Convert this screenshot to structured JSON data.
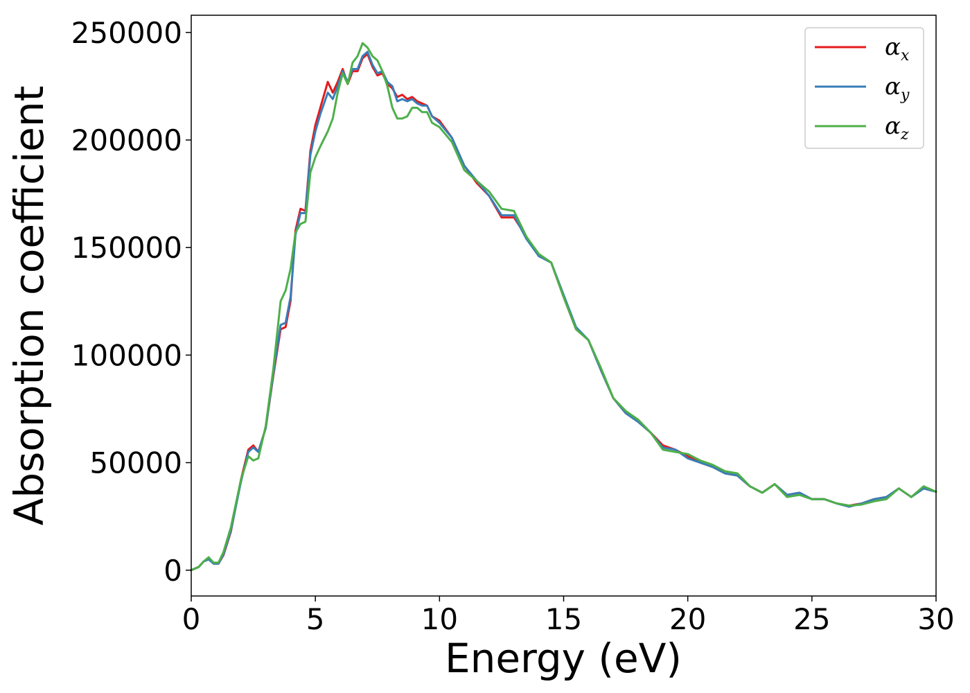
{
  "chart_data": {
    "type": "line",
    "xlabel": "Energy (eV)",
    "ylabel": "Absorption coefficient",
    "xlim": [
      0,
      30
    ],
    "ylim": [
      -12000,
      258000
    ],
    "xticks": [
      0,
      5,
      10,
      15,
      20,
      25,
      30
    ],
    "xtick_labels": [
      "0",
      "5",
      "10",
      "15",
      "20",
      "25",
      "30"
    ],
    "yticks": [
      0,
      50000,
      100000,
      150000,
      200000,
      250000
    ],
    "ytick_labels": [
      "0",
      "50000",
      "100000",
      "150000",
      "200000",
      "250000"
    ],
    "grid": false,
    "legend_position": "top-right",
    "series": [
      {
        "name": "α",
        "subscript": "x",
        "color": "#e41a1c",
        "x": [
          0,
          0.3,
          0.5,
          0.7,
          0.9,
          1.1,
          1.3,
          1.6,
          2.0,
          2.3,
          2.5,
          2.7,
          3.0,
          3.3,
          3.6,
          3.8,
          4.0,
          4.2,
          4.4,
          4.6,
          4.8,
          5.0,
          5.2,
          5.5,
          5.7,
          5.9,
          6.1,
          6.3,
          6.5,
          6.7,
          6.9,
          7.1,
          7.3,
          7.5,
          7.7,
          7.9,
          8.1,
          8.3,
          8.5,
          8.7,
          8.9,
          9.1,
          9.3,
          9.5,
          9.7,
          10.0,
          10.5,
          11.0,
          11.5,
          12.0,
          12.5,
          13.0,
          13.5,
          14.0,
          14.5,
          15.0,
          15.5,
          16.0,
          16.5,
          17.0,
          17.5,
          18.0,
          18.5,
          19.0,
          19.5,
          20.0,
          20.5,
          21.0,
          21.5,
          22.0,
          22.5,
          23.0,
          23.5,
          24.0,
          24.5,
          25.0,
          25.5,
          26.0,
          26.5,
          27.0,
          27.5,
          28.0,
          28.5,
          29.0,
          29.5,
          30.0
        ],
        "y": [
          0,
          1500,
          4000,
          5500,
          3000,
          3000,
          7000,
          18000,
          42000,
          56000,
          58000,
          55000,
          66000,
          90000,
          112000,
          113000,
          125000,
          158000,
          168000,
          167000,
          195000,
          207000,
          215000,
          227000,
          222000,
          227000,
          233000,
          226000,
          232000,
          232000,
          238000,
          240000,
          234000,
          230000,
          231000,
          226000,
          224000,
          220000,
          221000,
          219000,
          220000,
          218000,
          217000,
          216000,
          211000,
          209000,
          201000,
          188000,
          180000,
          174000,
          164000,
          164000,
          155000,
          146000,
          143000,
          127000,
          112000,
          107000,
          93000,
          80000,
          73000,
          69000,
          64000,
          58000,
          56000,
          53000,
          50000,
          48000,
          45000,
          44000,
          39000,
          36000,
          40000,
          35000,
          36000,
          33000,
          33000,
          31000,
          30000,
          31000,
          33000,
          34000,
          38000,
          34000,
          38000,
          36500
        ]
      },
      {
        "name": "α",
        "subscript": "y",
        "color": "#377eb8",
        "x": [
          0,
          0.3,
          0.5,
          0.7,
          0.9,
          1.1,
          1.3,
          1.6,
          2.0,
          2.3,
          2.5,
          2.7,
          3.0,
          3.3,
          3.6,
          3.8,
          4.0,
          4.2,
          4.4,
          4.6,
          4.8,
          5.0,
          5.2,
          5.5,
          5.7,
          5.9,
          6.1,
          6.3,
          6.5,
          6.7,
          6.9,
          7.1,
          7.3,
          7.5,
          7.7,
          7.9,
          8.1,
          8.3,
          8.5,
          8.7,
          8.9,
          9.1,
          9.3,
          9.5,
          9.7,
          10.0,
          10.5,
          11.0,
          11.5,
          12.0,
          12.5,
          13.0,
          13.5,
          14.0,
          14.5,
          15.0,
          15.5,
          16.0,
          16.5,
          17.0,
          17.5,
          18.0,
          18.5,
          19.0,
          19.5,
          20.0,
          20.5,
          21.0,
          21.5,
          22.0,
          22.5,
          23.0,
          23.5,
          24.0,
          24.5,
          25.0,
          25.5,
          26.0,
          26.5,
          27.0,
          27.5,
          28.0,
          28.5,
          29.0,
          29.5,
          30.0
        ],
        "y": [
          0,
          1500,
          4000,
          5000,
          3000,
          3000,
          7500,
          18500,
          41000,
          55000,
          57000,
          55000,
          66000,
          91000,
          114000,
          115000,
          127000,
          156000,
          166000,
          166000,
          193000,
          204000,
          212000,
          222000,
          219000,
          225000,
          232000,
          227000,
          233000,
          233000,
          239000,
          241000,
          235000,
          231000,
          232000,
          227000,
          225000,
          218000,
          219000,
          218000,
          219000,
          217000,
          216000,
          216000,
          211000,
          208000,
          201000,
          188000,
          181000,
          174000,
          165000,
          165000,
          154000,
          146000,
          143000,
          128000,
          113000,
          107000,
          93000,
          80000,
          73000,
          69000,
          64000,
          57000,
          56000,
          52000,
          50000,
          48000,
          45000,
          44000,
          39000,
          36000,
          40000,
          35000,
          36000,
          33000,
          33000,
          31000,
          29500,
          31000,
          33000,
          34000,
          38000,
          34000,
          38000,
          36500
        ]
      },
      {
        "name": "α",
        "subscript": "z",
        "color": "#4daf4a",
        "x": [
          0,
          0.3,
          0.5,
          0.7,
          0.9,
          1.1,
          1.3,
          1.6,
          2.0,
          2.3,
          2.5,
          2.7,
          3.0,
          3.3,
          3.6,
          3.8,
          4.0,
          4.2,
          4.4,
          4.6,
          4.8,
          5.0,
          5.2,
          5.5,
          5.7,
          5.9,
          6.1,
          6.3,
          6.5,
          6.7,
          6.9,
          7.1,
          7.3,
          7.5,
          7.7,
          7.9,
          8.1,
          8.3,
          8.5,
          8.7,
          8.9,
          9.1,
          9.3,
          9.5,
          9.7,
          10.0,
          10.5,
          11.0,
          11.5,
          12.0,
          12.5,
          13.0,
          13.5,
          14.0,
          14.5,
          15.0,
          15.5,
          16.0,
          16.5,
          17.0,
          17.5,
          18.0,
          18.5,
          19.0,
          19.5,
          20.0,
          20.5,
          21.0,
          21.5,
          22.0,
          22.5,
          23.0,
          23.5,
          24.0,
          24.5,
          25.0,
          25.5,
          26.0,
          26.5,
          27.0,
          27.5,
          28.0,
          28.5,
          29.0,
          29.5,
          30.0
        ],
        "y": [
          0,
          1500,
          4000,
          6000,
          3500,
          3500,
          8500,
          20000,
          42000,
          53000,
          51000,
          52000,
          67000,
          93000,
          125000,
          130000,
          140000,
          157000,
          161000,
          162000,
          185000,
          192000,
          197000,
          204000,
          210000,
          222000,
          231000,
          226000,
          236000,
          239000,
          245000,
          243000,
          239000,
          237000,
          232000,
          225000,
          215000,
          210000,
          210000,
          211000,
          215000,
          215000,
          213000,
          213000,
          208000,
          206000,
          199000,
          186000,
          181000,
          176000,
          168000,
          167000,
          155000,
          147000,
          143000,
          127000,
          112000,
          107000,
          94000,
          80000,
          74000,
          70000,
          64000,
          56000,
          55000,
          54000,
          51000,
          49000,
          46000,
          45000,
          39000,
          36000,
          40000,
          34000,
          35000,
          33000,
          33000,
          31000,
          30000,
          30500,
          32000,
          33000,
          38000,
          34000,
          39000,
          36500
        ]
      }
    ]
  }
}
